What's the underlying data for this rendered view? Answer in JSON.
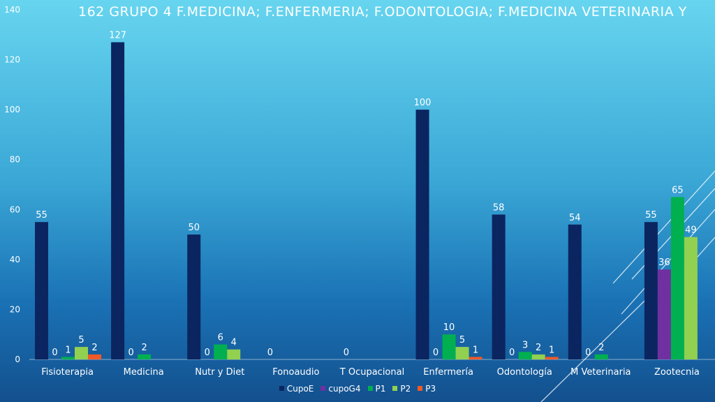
{
  "slide": {
    "title": "162  GRUPO 4  F.MEDICINA;  F.ENFERMERIA;  F.ODONTOLOGIA;  F.MEDICINA VETERINARIA Y"
  },
  "colors": {
    "CupoE": "#0b2560",
    "cupoG4": "#7030a0",
    "P1": "#00b050",
    "P2": "#92d050",
    "P3": "#f05a28"
  },
  "chart_data": {
    "type": "bar",
    "title": "",
    "xlabel": "",
    "ylabel": "",
    "ylim": [
      0,
      140
    ],
    "yticks": [
      0,
      20,
      40,
      60,
      80,
      100,
      120,
      140
    ],
    "grid": false,
    "legend_position": "bottom",
    "categories": [
      "Fisioterapia",
      "Medicina",
      "Nutr y Diet",
      "Fonoaudio",
      "T Ocupacional",
      "Enfermería",
      "Odontología",
      "M Veterinaria",
      "Zootecnia"
    ],
    "series": [
      {
        "name": "CupoE",
        "values": [
          55,
          127,
          50,
          0,
          0,
          100,
          58,
          54,
          55
        ]
      },
      {
        "name": "cupoG4",
        "values": [
          0,
          0,
          0,
          null,
          null,
          0,
          0,
          0,
          36
        ]
      },
      {
        "name": "P1",
        "values": [
          1,
          2,
          6,
          null,
          null,
          10,
          3,
          2,
          65
        ]
      },
      {
        "name": "P2",
        "values": [
          5,
          null,
          4,
          null,
          null,
          5,
          2,
          null,
          49
        ]
      },
      {
        "name": "P3",
        "values": [
          2,
          null,
          null,
          null,
          null,
          1,
          1,
          null,
          null
        ]
      }
    ]
  }
}
